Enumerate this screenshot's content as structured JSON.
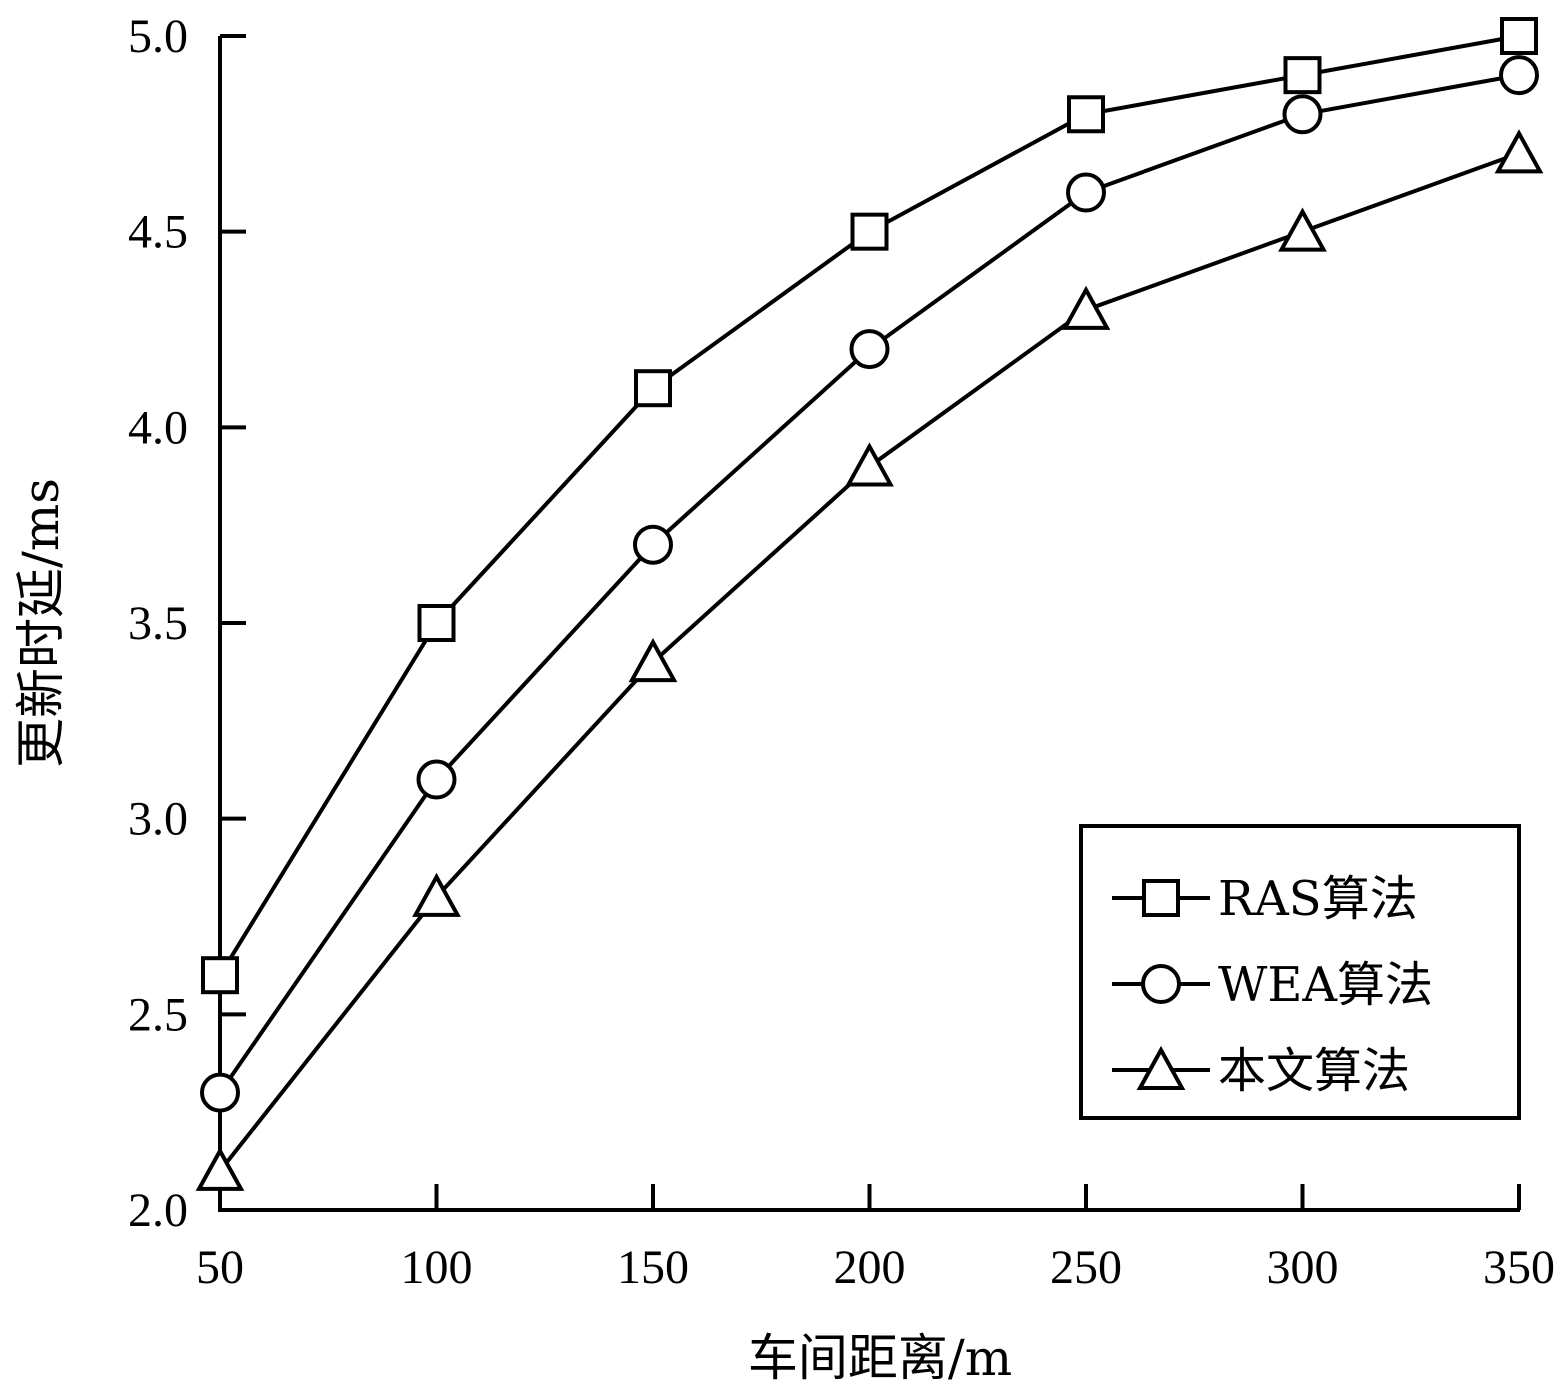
{
  "chart_data": {
    "type": "line",
    "title": "",
    "xlabel": "车间距离/m",
    "ylabel": "更新时延/ms",
    "x": [
      50,
      100,
      150,
      200,
      250,
      300,
      350
    ],
    "xlim": [
      50,
      350
    ],
    "ylim": [
      2.0,
      5.0
    ],
    "xticks": [
      "50",
      "100",
      "150",
      "200",
      "250",
      "300",
      "350"
    ],
    "yticks": [
      "2.0",
      "2.5",
      "3.0",
      "3.5",
      "4.0",
      "4.5",
      "5.0"
    ],
    "grid": false,
    "legend_position": "bottom-right",
    "series": [
      {
        "name": "RAS算法",
        "marker": "square",
        "values": [
          2.6,
          3.5,
          4.1,
          4.5,
          4.8,
          4.9,
          5.0
        ]
      },
      {
        "name": "WEA算法",
        "marker": "circle",
        "values": [
          2.3,
          3.1,
          3.7,
          4.2,
          4.6,
          4.8,
          4.9
        ]
      },
      {
        "name": "本文算法",
        "marker": "triangle",
        "values": [
          2.1,
          2.8,
          3.4,
          3.9,
          4.3,
          4.5,
          4.7
        ]
      }
    ],
    "colors": {
      "line": "#000000",
      "marker_fill": "#ffffff",
      "background": "#ffffff"
    }
  }
}
